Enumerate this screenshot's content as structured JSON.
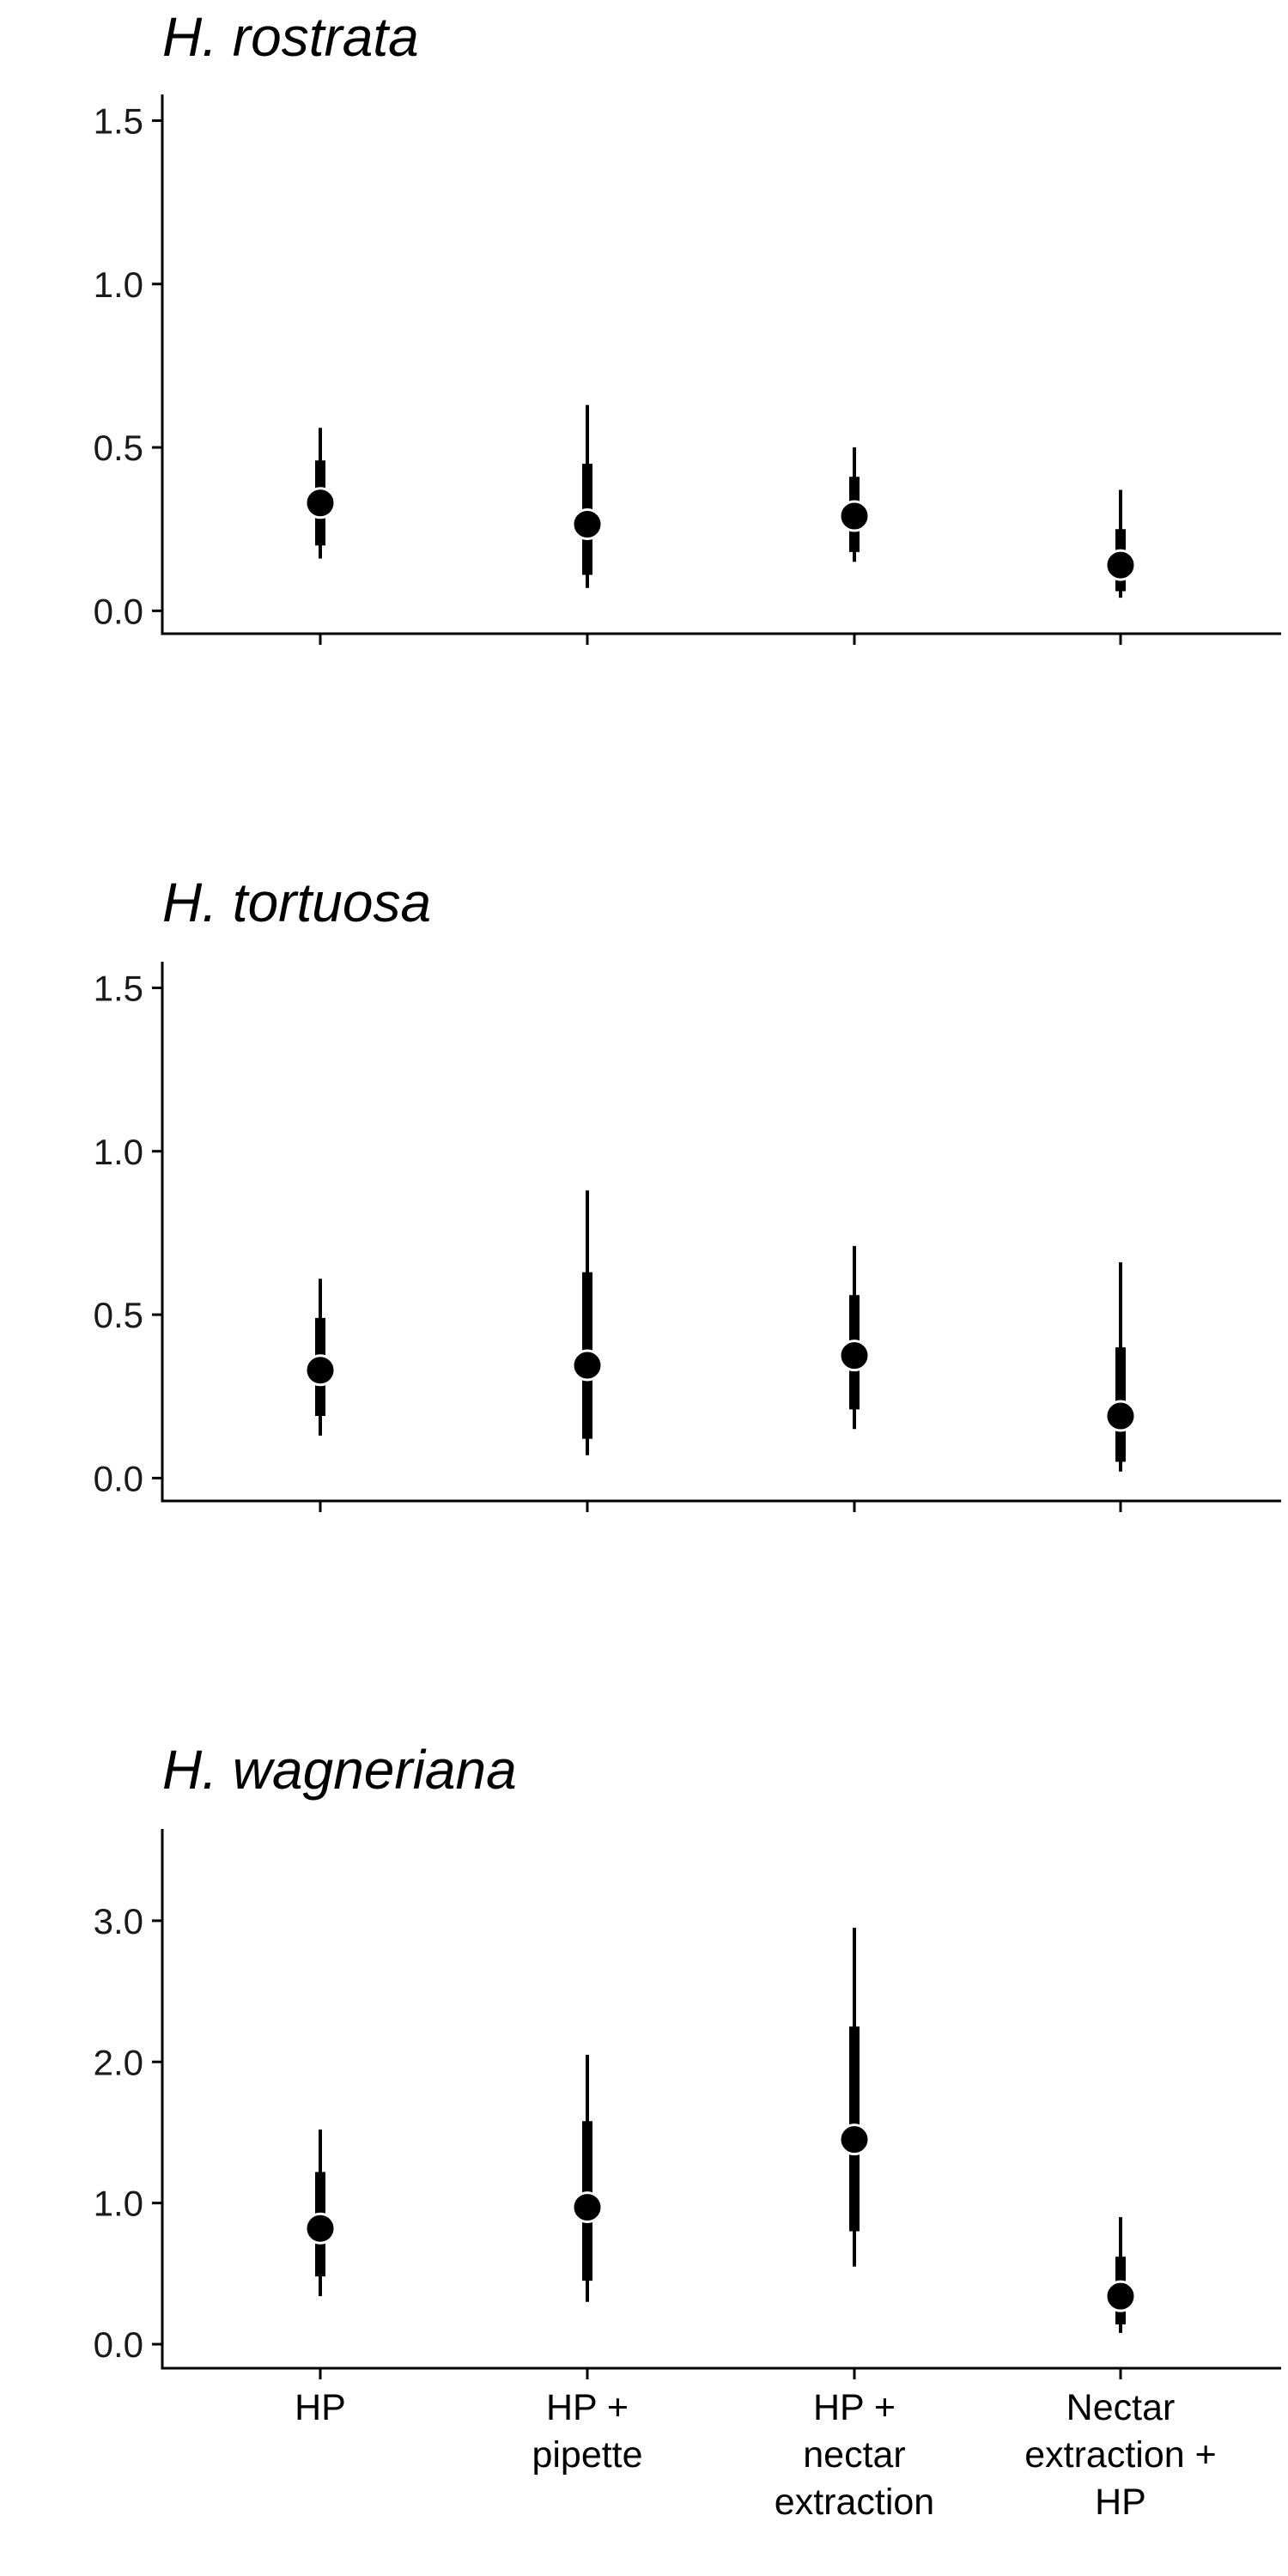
{
  "chart_data": [
    {
      "type": "scatter",
      "title": "H. rostrata",
      "categories": [
        "HP",
        "HP + pipette",
        "HP + nectar extraction",
        "Nectar extraction + HP"
      ],
      "y_ticks": [
        "0.0",
        "0.5",
        "1.0",
        "1.5"
      ],
      "ylim": [
        -0.07,
        1.58
      ],
      "point_estimates": [
        0.33,
        0.265,
        0.29,
        0.14
      ],
      "inner_interval": [
        [
          0.2,
          0.46
        ],
        [
          0.11,
          0.45
        ],
        [
          0.18,
          0.41
        ],
        [
          0.06,
          0.25
        ]
      ],
      "outer_interval": [
        [
          0.16,
          0.56
        ],
        [
          0.07,
          0.63
        ],
        [
          0.15,
          0.5
        ],
        [
          0.04,
          0.37
        ]
      ],
      "show_category_labels": false,
      "grid": false
    },
    {
      "type": "scatter",
      "title": "H. tortuosa",
      "categories": [
        "HP",
        "HP + pipette",
        "HP + nectar extraction",
        "Nectar extraction + HP"
      ],
      "y_ticks": [
        "0.0",
        "0.5",
        "1.0",
        "1.5"
      ],
      "ylim": [
        -0.07,
        1.58
      ],
      "point_estimates": [
        0.33,
        0.345,
        0.375,
        0.19
      ],
      "inner_interval": [
        [
          0.19,
          0.49
        ],
        [
          0.12,
          0.63
        ],
        [
          0.21,
          0.56
        ],
        [
          0.05,
          0.4
        ]
      ],
      "outer_interval": [
        [
          0.13,
          0.61
        ],
        [
          0.07,
          0.88
        ],
        [
          0.15,
          0.71
        ],
        [
          0.02,
          0.66
        ]
      ],
      "show_category_labels": false,
      "grid": false
    },
    {
      "type": "scatter",
      "title": "H. wagneriana",
      "categories": [
        "HP",
        "HP + pipette",
        "HP + nectar extraction",
        "Nectar extraction + HP"
      ],
      "category_lines": [
        [
          "HP"
        ],
        [
          "HP +",
          "pipette"
        ],
        [
          "HP +",
          "nectar",
          "extraction"
        ],
        [
          "Nectar",
          "extraction +",
          "HP"
        ]
      ],
      "y_ticks": [
        "0.0",
        "1.0",
        "2.0",
        "3.0"
      ],
      "ylim": [
        -0.17,
        3.65
      ],
      "point_estimates": [
        0.82,
        0.97,
        1.45,
        0.34
      ],
      "inner_interval": [
        [
          0.48,
          1.22
        ],
        [
          0.45,
          1.58
        ],
        [
          0.8,
          2.25
        ],
        [
          0.14,
          0.62
        ]
      ],
      "outer_interval": [
        [
          0.34,
          1.52
        ],
        [
          0.3,
          2.05
        ],
        [
          0.55,
          2.95
        ],
        [
          0.08,
          0.9
        ]
      ],
      "show_category_labels": true,
      "grid": false
    }
  ]
}
